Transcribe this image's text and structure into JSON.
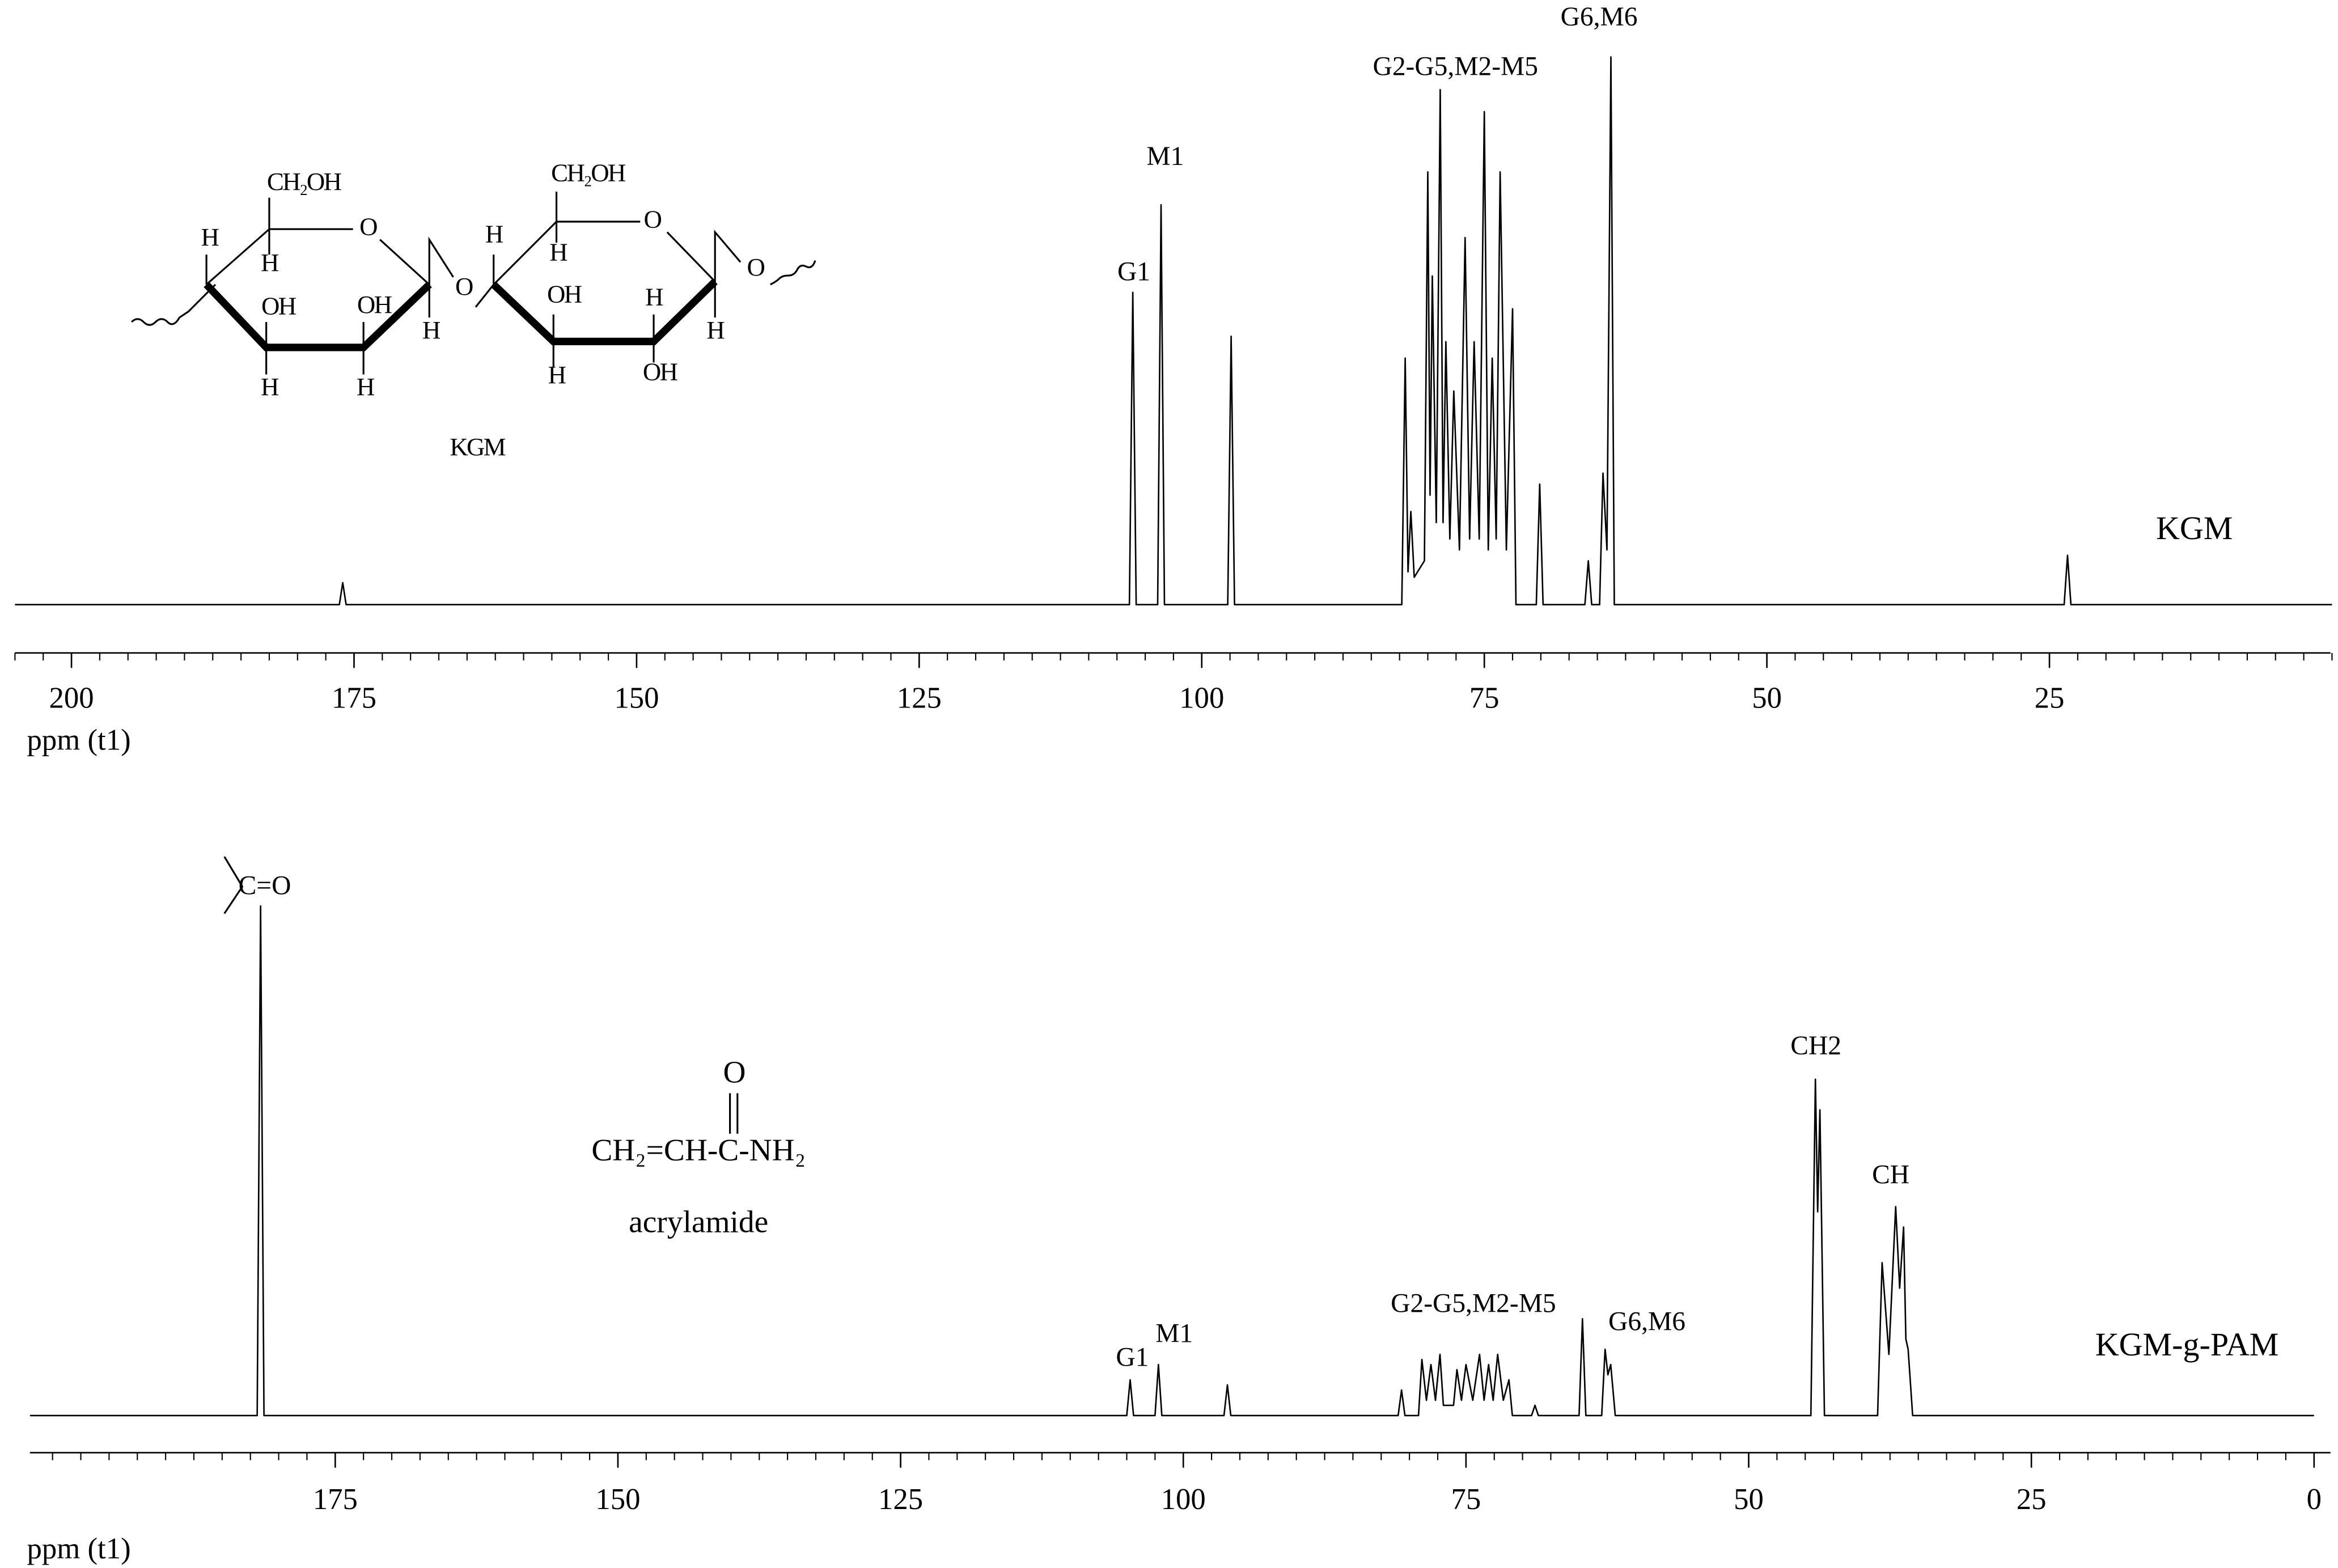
{
  "chart_data": [
    {
      "type": "line",
      "xlabel": "ppm (t1)",
      "xlim": [
        205,
        0
      ],
      "xticks": [
        200,
        175,
        150,
        125,
        100,
        75,
        50,
        25
      ],
      "xminor_step": 2.5,
      "ylim": [
        -8,
        100
      ],
      "x": [
        205,
        176.3,
        176,
        175.7,
        106.4,
        106.1,
        105.8,
        103.9,
        103.6,
        103.3,
        97.7,
        97.4,
        97.1,
        82.3,
        82.0,
        81.75,
        81.5,
        81.2,
        80.3,
        80.0,
        79.8,
        79.6,
        79.25,
        78.9,
        78.65,
        78.4,
        78.05,
        77.7,
        77.2,
        76.7,
        76.3,
        75.9,
        75.45,
        75.0,
        74.65,
        74.3,
        73.95,
        73.6,
        73.05,
        72.5,
        72.2,
        70.4,
        70.1,
        69.8,
        66.1,
        65.8,
        65.5,
        64.8,
        64.5,
        64.15,
        63.8,
        63.5,
        23.7,
        23.4,
        23.1,
        0
      ],
      "series": [
        {
          "name": "KGM",
          "color": "#000000",
          "values": [
            0,
            0,
            4,
            0,
            0,
            57,
            0,
            0,
            73,
            0,
            0,
            49,
            0,
            0,
            45,
            6,
            17,
            5,
            8,
            79,
            20,
            60,
            15,
            94,
            15,
            48,
            12,
            39,
            10,
            67,
            12,
            48,
            12,
            90,
            10,
            45,
            12,
            79,
            10,
            54,
            0,
            0,
            22,
            0,
            0,
            8,
            0,
            0,
            24,
            10,
            100,
            0,
            0,
            9,
            0,
            0
          ]
        }
      ],
      "annotations": [
        "G1",
        "M1",
        "G2-G5,M2-M5",
        "G6,M6"
      ]
    },
    {
      "type": "line",
      "xlabel": "ppm (t1)",
      "xlim": [
        202,
        0
      ],
      "xticks": [
        175,
        150,
        125,
        100,
        75,
        50,
        25,
        0
      ],
      "xminor_step": 2.5,
      "ylim": [
        -7,
        100
      ],
      "x": [
        202,
        181.9,
        181.6,
        181.3,
        105.0,
        104.7,
        104.4,
        102.5,
        102.2,
        101.9,
        96.4,
        96.1,
        95.8,
        81.0,
        80.7,
        80.4,
        79.2,
        78.9,
        78.5,
        78.1,
        77.7,
        77.3,
        77.0,
        76.1,
        75.8,
        75.4,
        75.0,
        74.4,
        73.8,
        73.4,
        73.0,
        72.6,
        72.2,
        71.7,
        71.2,
        70.9,
        69.2,
        68.9,
        68.6,
        65.0,
        64.7,
        64.4,
        63.0,
        62.7,
        62.45,
        62.2,
        61.8,
        44.5,
        44.1,
        43.9,
        43.7,
        43.3,
        38.6,
        38.2,
        37.6,
        37.0,
        36.65,
        36.3,
        36.1,
        35.9,
        35.5,
        0
      ],
      "series": [
        {
          "name": "KGM-g-PAM",
          "color": "#000000",
          "values": [
            0,
            0,
            100,
            0,
            0,
            7,
            0,
            0,
            10,
            0,
            0,
            6,
            0,
            0,
            5,
            0,
            0,
            11,
            3,
            10,
            3,
            12,
            2,
            2,
            9,
            3,
            10,
            3,
            12,
            3,
            10,
            3,
            12,
            3,
            7,
            0,
            0,
            2,
            0,
            0,
            19,
            0,
            0,
            13,
            8,
            10,
            0,
            0,
            66,
            40,
            60,
            0,
            0,
            30,
            12,
            41,
            25,
            37,
            15,
            13,
            0,
            0
          ]
        }
      ],
      "annotations": [
        "G1",
        "M1",
        "G2-G5,M2-M5",
        "G6,M6",
        "CH2",
        "CH"
      ]
    }
  ],
  "structures": {
    "kgm": {
      "labels": [
        "CH₂OH",
        "H",
        "H",
        "O",
        "OH",
        "OH",
        "H",
        "O",
        "H",
        "H",
        "CH₂OH",
        "H",
        "H",
        "O",
        "OH",
        "H",
        "H",
        "O",
        "H",
        "OH"
      ],
      "name": "KGM"
    },
    "acrylamide": {
      "formula": "CH₂=CH-C-NH₂",
      "oxygen": "O",
      "name": "acrylamide"
    },
    "carbonyl": "C=O"
  }
}
